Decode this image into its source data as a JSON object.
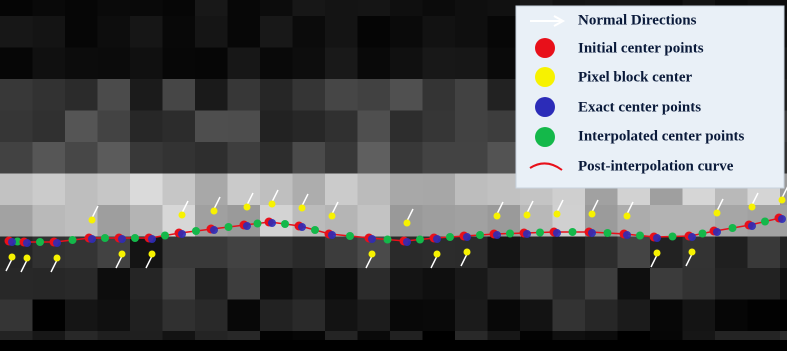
{
  "legend": {
    "items": [
      {
        "label": "Normal Directions"
      },
      {
        "label": "Initial center points"
      },
      {
        "label": "Pixel block center"
      },
      {
        "label": "Exact center points"
      },
      {
        "label": "Interpolated center points"
      },
      {
        "label": "Post-interpolation curve"
      }
    ]
  }
}
